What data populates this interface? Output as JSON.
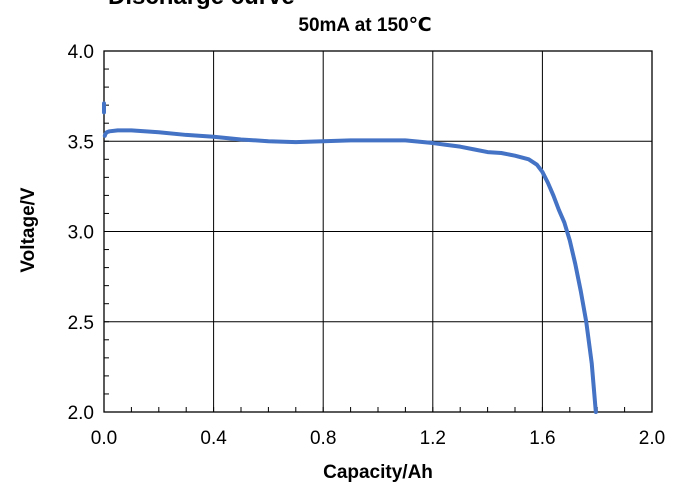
{
  "chart_data": {
    "type": "line",
    "title": "Discharge curve",
    "subtitle": "50mA at 150℃",
    "xlabel": "Capacity/Ah",
    "ylabel": "Voltage/V",
    "xlim": [
      0.0,
      2.0
    ],
    "ylim": [
      2.0,
      4.0
    ],
    "x_ticks": [
      "0.0",
      "0.4",
      "0.8",
      "1.2",
      "1.6",
      "2.0"
    ],
    "y_ticks": [
      "2.0",
      "2.5",
      "3.0",
      "3.5",
      "4.0"
    ],
    "grid": true,
    "series_color": "#4472C4",
    "series": [
      {
        "name": "",
        "x": [
          0.0,
          0.0,
          0.003,
          0.005,
          0.01,
          0.02,
          0.05,
          0.1,
          0.2,
          0.3,
          0.4,
          0.5,
          0.6,
          0.7,
          0.8,
          0.9,
          1.0,
          1.1,
          1.2,
          1.25,
          1.3,
          1.35,
          1.4,
          1.45,
          1.5,
          1.55,
          1.58,
          1.6,
          1.62,
          1.64,
          1.66,
          1.68,
          1.7,
          1.72,
          1.74,
          1.76,
          1.78,
          1.795
        ],
        "y": [
          3.71,
          3.66,
          3.53,
          3.54,
          3.55,
          3.555,
          3.56,
          3.56,
          3.55,
          3.535,
          3.525,
          3.51,
          3.5,
          3.495,
          3.5,
          3.505,
          3.505,
          3.505,
          3.49,
          3.48,
          3.47,
          3.455,
          3.44,
          3.435,
          3.42,
          3.4,
          3.37,
          3.33,
          3.27,
          3.2,
          3.12,
          3.05,
          2.95,
          2.82,
          2.67,
          2.5,
          2.27,
          2.0
        ]
      }
    ]
  }
}
